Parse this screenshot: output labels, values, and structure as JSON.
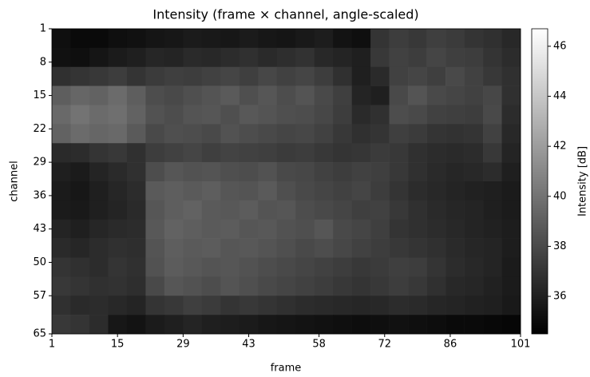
{
  "chart_data": {
    "type": "heatmap",
    "title": "Intensity (frame × channel, angle-scaled)",
    "x_label": "frame",
    "y_label": "channel",
    "colorbar_label": "Intensity [dB]",
    "colormap": "gray",
    "xlim": [
      1,
      101
    ],
    "ylim": [
      65,
      1
    ],
    "xticks": [
      1,
      15,
      29,
      43,
      58,
      72,
      86,
      101
    ],
    "yticks": [
      1,
      8,
      15,
      22,
      29,
      36,
      43,
      50,
      57,
      65
    ],
    "clim": [
      34.5,
      46.7
    ],
    "cticks": [
      36,
      38,
      40,
      42,
      44,
      46
    ],
    "xbins": [
      1,
      5,
      9,
      13,
      17,
      21,
      25,
      29,
      33,
      37,
      41,
      45,
      49,
      53,
      57,
      61,
      65,
      69,
      73,
      77,
      81,
      85,
      89,
      93,
      97,
      101
    ],
    "ybins": [
      1,
      5,
      9,
      13,
      17,
      21,
      25,
      29,
      33,
      37,
      41,
      45,
      49,
      53,
      57,
      61,
      65
    ],
    "values": [
      [
        35.2,
        35.0,
        35.0,
        35.2,
        35.3,
        35.5,
        35.6,
        35.8,
        35.7,
        35.6,
        35.8,
        35.6,
        35.5,
        35.7,
        35.9,
        35.4,
        35.2,
        37.0,
        37.4,
        37.2,
        37.5,
        37.3,
        37.0,
        36.8,
        36.4
      ],
      [
        35.3,
        35.2,
        35.5,
        35.8,
        36.0,
        36.3,
        36.2,
        36.5,
        36.4,
        36.6,
        36.8,
        36.5,
        36.7,
        36.9,
        36.4,
        36.2,
        36.0,
        37.2,
        37.6,
        37.4,
        37.8,
        37.5,
        37.4,
        37.0,
        36.6
      ],
      [
        36.8,
        37.0,
        37.2,
        37.4,
        37.0,
        37.3,
        37.5,
        37.4,
        37.6,
        37.8,
        37.5,
        37.9,
        37.6,
        37.8,
        37.4,
        36.8,
        36.0,
        36.5,
        37.6,
        37.8,
        37.5,
        38.0,
        37.6,
        37.2,
        36.8
      ],
      [
        39.0,
        39.4,
        39.2,
        39.6,
        39.0,
        38.2,
        38.0,
        38.3,
        38.5,
        38.8,
        38.3,
        38.6,
        38.2,
        38.5,
        38.0,
        37.5,
        36.2,
        36.0,
        38.0,
        38.5,
        38.0,
        37.8,
        37.6,
        37.9,
        36.8
      ],
      [
        39.5,
        40.0,
        39.6,
        39.8,
        39.2,
        38.4,
        38.2,
        38.5,
        38.6,
        38.3,
        38.7,
        38.5,
        38.3,
        38.2,
        37.9,
        37.4,
        36.5,
        36.8,
        38.2,
        38.0,
        37.6,
        37.5,
        37.4,
        38.0,
        36.6
      ],
      [
        39.2,
        39.6,
        39.4,
        39.5,
        38.8,
        38.0,
        38.3,
        38.2,
        38.0,
        38.4,
        38.2,
        38.0,
        37.8,
        37.9,
        37.6,
        37.2,
        36.8,
        37.0,
        37.5,
        37.3,
        37.0,
        36.9,
        37.0,
        37.6,
        36.4
      ],
      [
        36.5,
        36.6,
        37.0,
        37.2,
        36.8,
        37.4,
        37.6,
        37.8,
        37.5,
        37.7,
        37.6,
        37.5,
        37.3,
        37.4,
        37.2,
        37.0,
        37.1,
        37.3,
        37.2,
        36.8,
        36.6,
        36.5,
        36.6,
        37.2,
        36.2
      ],
      [
        36.0,
        35.8,
        36.2,
        36.5,
        36.8,
        38.2,
        38.6,
        38.4,
        38.5,
        38.3,
        38.2,
        38.4,
        38.0,
        37.9,
        37.6,
        37.4,
        37.6,
        37.5,
        37.2,
        36.8,
        36.5,
        36.3,
        36.4,
        36.6,
        36.0
      ],
      [
        35.8,
        35.6,
        36.0,
        36.3,
        36.6,
        38.8,
        39.0,
        38.8,
        39.0,
        38.6,
        38.5,
        38.8,
        38.3,
        38.0,
        37.8,
        37.6,
        37.8,
        37.4,
        37.0,
        36.6,
        36.4,
        36.2,
        36.1,
        36.0,
        35.8
      ],
      [
        35.8,
        35.7,
        36.0,
        36.2,
        36.5,
        38.6,
        39.0,
        39.2,
        38.8,
        38.7,
        38.9,
        38.5,
        38.6,
        38.2,
        38.0,
        37.8,
        37.5,
        37.6,
        37.2,
        36.8,
        36.5,
        36.3,
        36.2,
        36.0,
        35.8
      ],
      [
        36.2,
        36.0,
        36.3,
        36.5,
        36.6,
        38.7,
        39.2,
        39.0,
        38.8,
        38.9,
        38.6,
        38.7,
        38.4,
        38.3,
        38.6,
        38.0,
        37.8,
        37.5,
        37.0,
        36.8,
        36.6,
        36.4,
        36.2,
        36.1,
        35.9
      ],
      [
        36.5,
        36.3,
        36.6,
        36.8,
        36.7,
        38.5,
        39.0,
        38.8,
        38.9,
        38.6,
        38.7,
        38.5,
        38.3,
        38.0,
        38.2,
        37.9,
        37.6,
        37.4,
        37.2,
        37.0,
        36.8,
        36.5,
        36.3,
        36.2,
        35.9
      ],
      [
        37.0,
        36.8,
        36.6,
        37.0,
        36.8,
        38.4,
        38.9,
        38.7,
        38.5,
        38.6,
        38.4,
        38.2,
        38.0,
        37.8,
        37.6,
        37.4,
        37.2,
        37.3,
        37.5,
        37.4,
        37.0,
        36.6,
        36.4,
        36.2,
        35.8
      ],
      [
        37.2,
        37.0,
        36.8,
        36.9,
        36.7,
        38.0,
        38.6,
        38.4,
        38.2,
        38.5,
        38.3,
        38.0,
        37.8,
        37.6,
        37.4,
        37.2,
        37.0,
        37.2,
        37.4,
        37.2,
        36.8,
        36.4,
        36.3,
        36.1,
        35.8
      ],
      [
        36.8,
        36.5,
        36.6,
        36.4,
        36.2,
        37.0,
        37.2,
        37.5,
        37.3,
        37.0,
        37.2,
        37.0,
        36.8,
        36.6,
        36.5,
        36.4,
        36.3,
        36.4,
        36.6,
        36.5,
        36.3,
        36.2,
        36.1,
        36.0,
        35.7
      ],
      [
        37.2,
        37.0,
        36.6,
        35.6,
        35.4,
        35.8,
        36.0,
        36.2,
        36.0,
        35.9,
        35.8,
        35.6,
        35.5,
        35.4,
        35.3,
        35.2,
        35.1,
        35.2,
        35.3,
        35.2,
        35.1,
        35.0,
        35.0,
        34.9,
        34.8
      ]
    ]
  }
}
